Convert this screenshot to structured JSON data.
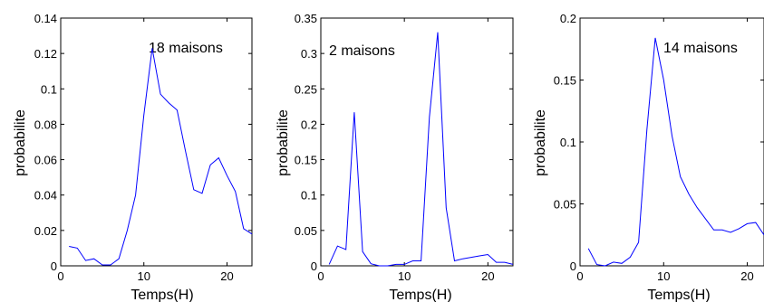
{
  "chart_data": [
    {
      "type": "line",
      "title": "",
      "annotation": "18 maisons",
      "xlabel": "Temps(H)",
      "ylabel": "probabilite",
      "xlim": [
        0,
        23
      ],
      "ylim": [
        0,
        0.14
      ],
      "xticks": [
        "0",
        "10",
        "20"
      ],
      "yticks": [
        "0",
        "0.02",
        "0.04",
        "0.06",
        "0.08",
        "0.1",
        "0.12",
        "0.14"
      ],
      "grid": false,
      "series": [
        {
          "color": "#0000ff",
          "x": [
            1,
            2,
            3,
            4,
            5,
            6,
            7,
            8,
            9,
            10,
            11,
            12,
            13,
            14,
            15,
            16,
            17,
            18,
            19,
            20,
            21,
            22,
            23
          ],
          "y": [
            0.011,
            0.01,
            0.003,
            0.004,
            0.0005,
            0.0005,
            0.004,
            0.02,
            0.04,
            0.085,
            0.123,
            0.097,
            0.092,
            0.088,
            0.065,
            0.043,
            0.041,
            0.057,
            0.061,
            0.051,
            0.042,
            0.021,
            0.018
          ]
        }
      ]
    },
    {
      "type": "line",
      "title": "",
      "annotation": "2 maisons",
      "xlabel": "Temps(H)",
      "ylabel": "probabilite",
      "xlim": [
        0,
        23
      ],
      "ylim": [
        0,
        0.35
      ],
      "xticks": [
        "0",
        "10",
        "20"
      ],
      "yticks": [
        "0",
        "0.05",
        "0.1",
        "0.15",
        "0.2",
        "0.25",
        "0.3",
        "0.35"
      ],
      "grid": false,
      "series": [
        {
          "color": "#0000ff",
          "x": [
            1,
            2,
            3,
            4,
            5,
            6,
            7,
            8,
            9,
            10,
            11,
            12,
            13,
            14,
            15,
            16,
            17,
            18,
            19,
            20,
            21,
            22,
            23
          ],
          "y": [
            0.002,
            0.028,
            0.023,
            0.217,
            0.02,
            0.003,
            0.0,
            0.0,
            0.002,
            0.002,
            0.007,
            0.007,
            0.21,
            0.33,
            0.082,
            0.007,
            0.01,
            0.012,
            0.014,
            0.016,
            0.005,
            0.005,
            0.002
          ]
        }
      ]
    },
    {
      "type": "line",
      "title": "",
      "annotation": "14 maisons",
      "xlabel": "Temps(H)",
      "ylabel": "probabilite",
      "xlim": [
        0,
        22
      ],
      "ylim": [
        0,
        0.2
      ],
      "xticks": [
        "0",
        "10",
        "20"
      ],
      "yticks": [
        "0",
        "0.05",
        "0.1",
        "0.15",
        "0.2"
      ],
      "grid": false,
      "series": [
        {
          "color": "#0000ff",
          "x": [
            1,
            2,
            3,
            4,
            5,
            6,
            7,
            8,
            9,
            10,
            11,
            12,
            13,
            14,
            15,
            16,
            17,
            18,
            19,
            20,
            21,
            22
          ],
          "y": [
            0.014,
            0.001,
            0.0,
            0.003,
            0.002,
            0.007,
            0.019,
            0.11,
            0.184,
            0.15,
            0.105,
            0.072,
            0.058,
            0.047,
            0.038,
            0.029,
            0.029,
            0.027,
            0.03,
            0.034,
            0.035,
            0.025
          ]
        }
      ]
    }
  ]
}
